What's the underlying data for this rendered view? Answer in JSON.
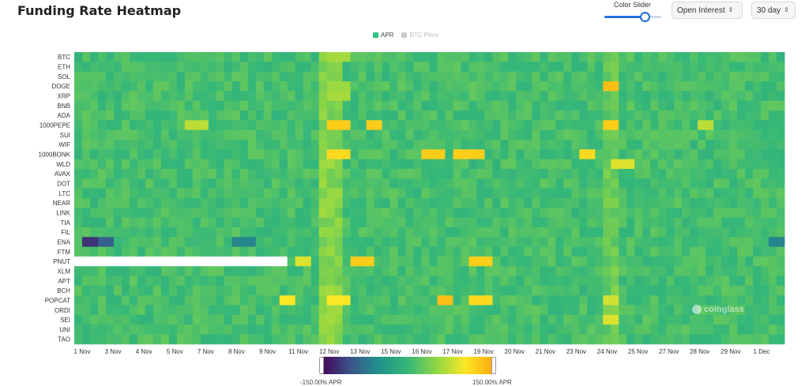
{
  "title": "Funding Rate Heatmap",
  "controls": {
    "slider_label": "Color Slider",
    "slider_value": 0.68,
    "metric_select": "Open Interest",
    "range_select": "30 day"
  },
  "legend": {
    "apr_label": "APR",
    "btc_label": "BTC Price",
    "apr_color": "#2ec47a",
    "btc_color": "#cccccc"
  },
  "colorbar": {
    "min_label": "-150.00% APR",
    "max_label": "150.00% APR",
    "stops": [
      "#440154",
      "#3b528b",
      "#21918c",
      "#35b779",
      "#8fd744",
      "#fde725",
      "#fca50a"
    ]
  },
  "watermark": "coinglass",
  "chart_data": {
    "type": "heatmap",
    "title": "Funding Rate Heatmap",
    "x_ticks": [
      "1 Nov",
      "3 Nov",
      "4 Nov",
      "5 Nov",
      "7 Nov",
      "8 Nov",
      "9 Nov",
      "11 Nov",
      "12 Nov",
      "13 Nov",
      "15 Nov",
      "16 Nov",
      "17 Nov",
      "19 Nov",
      "20 Nov",
      "21 Nov",
      "23 Nov",
      "24 Nov",
      "25 Nov",
      "27 Nov",
      "28 Nov",
      "29 Nov",
      "1 Dec"
    ],
    "x_range_days": [
      0,
      30
    ],
    "value_range_apr_pct": [
      -150,
      150
    ],
    "rows": [
      "BTC",
      "ETH",
      "SOL",
      "DOGE",
      "XRP",
      "BNB",
      "ADA",
      "1000PEPE",
      "SUI",
      "WIF",
      "1000BONK",
      "WLD",
      "AVAX",
      "DOT",
      "LTC",
      "NEAR",
      "LINK",
      "TIA",
      "FIL",
      "ENA",
      "FTM",
      "PNUT",
      "XLM",
      "APT",
      "BCH",
      "POPCAT",
      "ORDI",
      "SEI",
      "UNI",
      "TAO"
    ],
    "baseline_apr_pct": 10,
    "highlights": [
      {
        "row": "BTC",
        "day": 11,
        "apr_pct": 60
      },
      {
        "row": "DOGE",
        "day": 11,
        "apr_pct": 55
      },
      {
        "row": "DOGE",
        "day": 22.5,
        "apr_pct": 130
      },
      {
        "row": "XRP",
        "day": 11,
        "apr_pct": 60
      },
      {
        "row": "1000PEPE",
        "day": 11,
        "apr_pct": 120
      },
      {
        "row": "1000PEPE",
        "day": 12.5,
        "apr_pct": 120
      },
      {
        "row": "1000PEPE",
        "day": 22.5,
        "apr_pct": 120
      },
      {
        "row": "1000PEPE",
        "day": 5,
        "apr_pct": 70
      },
      {
        "row": "1000PEPE",
        "day": 26.5,
        "apr_pct": 70
      },
      {
        "row": "1000BONK",
        "day": 15,
        "apr_pct": 120
      },
      {
        "row": "1000BONK",
        "day": 16.3,
        "apr_pct": 120
      },
      {
        "row": "1000BONK",
        "day": 16.8,
        "apr_pct": 120
      },
      {
        "row": "1000BONK",
        "day": 11,
        "apr_pct": 110
      },
      {
        "row": "1000BONK",
        "day": 21.5,
        "apr_pct": 110
      },
      {
        "row": "WLD",
        "day": 23,
        "apr_pct": 85
      },
      {
        "row": "ENA",
        "day": 0.5,
        "apr_pct": -120
      },
      {
        "row": "ENA",
        "day": 1.2,
        "apr_pct": -90
      },
      {
        "row": "ENA",
        "day": 7,
        "apr_pct": -60
      },
      {
        "row": "ENA",
        "day": 29.5,
        "apr_pct": -60
      },
      {
        "row": "PNUT",
        "day": 12,
        "apr_pct": 120
      },
      {
        "row": "PNUT",
        "day": 17,
        "apr_pct": 120
      },
      {
        "row": "PNUT",
        "day": 9.5,
        "apr_pct": 85
      },
      {
        "row": "POPCAT",
        "day": 8.8,
        "apr_pct": 100
      },
      {
        "row": "POPCAT",
        "day": 11,
        "apr_pct": 100
      },
      {
        "row": "POPCAT",
        "day": 15.5,
        "apr_pct": 130
      },
      {
        "row": "POPCAT",
        "day": 17,
        "apr_pct": 110
      },
      {
        "row": "POPCAT",
        "day": 22.5,
        "apr_pct": 80
      },
      {
        "row": "SEI",
        "day": 22.5,
        "apr_pct": 85
      }
    ],
    "missing": [
      {
        "row": "PNUT",
        "from_day": 0,
        "to_day": 9
      }
    ],
    "xlabel": "",
    "ylabel": "",
    "grid": false,
    "legend_position": "top-center"
  }
}
